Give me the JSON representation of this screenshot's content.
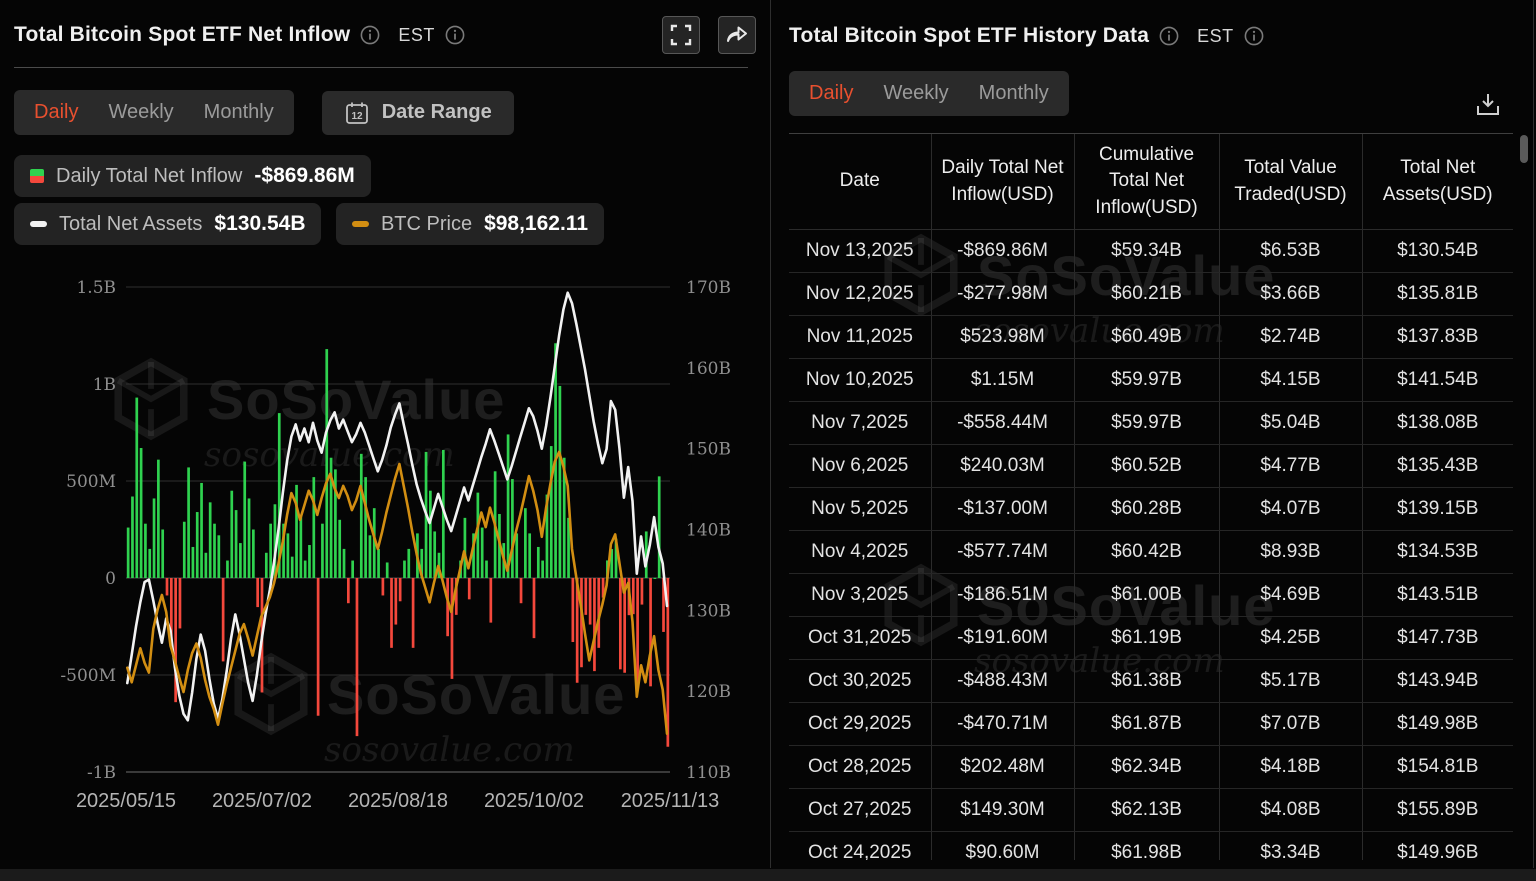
{
  "colors": {
    "accent_red": "#e8502f",
    "bar_green": "#2fd24f",
    "bar_red": "#f4483c",
    "table_green": "#1dbf5f",
    "table_red": "#f24040",
    "assets_line": "#f2f2f2",
    "btc_line": "#d28e12",
    "grid": "#303030",
    "grid_zero": "#4a4a4a",
    "grid_bottom": "#6e6e6e"
  },
  "watermark": {
    "brand": "SoSoValue",
    "domain": "sosovalue.com"
  },
  "left_panel": {
    "title": "Total Bitcoin Spot ETF Net Inflow",
    "timezone": "EST",
    "tabs": [
      "Daily",
      "Weekly",
      "Monthly"
    ],
    "active_tab": "Daily",
    "date_range_label": "Date Range",
    "calendar_day": "12",
    "legend": [
      {
        "label": "Daily Total Net Inflow",
        "value": "-$869.86M",
        "icon": "green-red-split-icon"
      },
      {
        "label": "Total Net Assets",
        "value": "$130.54B",
        "icon": "white-dash-icon"
      },
      {
        "label": "BTC Price",
        "value": "$98,162.11",
        "icon": "orange-dash-icon"
      }
    ]
  },
  "chart_data": {
    "type": "combo",
    "title": "Total Bitcoin Spot ETF Net Inflow",
    "x": {
      "tick_labels": [
        "2025/05/15",
        "2025/07/02",
        "2025/08/18",
        "2025/10/02",
        "2025/11/13"
      ],
      "start": "2025/05/15",
      "end": "2025/11/13",
      "points": 126
    },
    "axes": {
      "left": {
        "range_M": [
          -1000,
          1500
        ],
        "ticks": [
          1500,
          1000,
          500,
          0,
          -500,
          -1000
        ],
        "tick_labels": [
          "1.5B",
          "1B",
          "500M",
          "0",
          "-500M",
          "-1B"
        ]
      },
      "right": {
        "range_B": [
          110,
          170
        ],
        "ticks": [
          170,
          160,
          150,
          140,
          130,
          120,
          110
        ],
        "tick_labels": [
          "170B",
          "160B",
          "150B",
          "140B",
          "130B",
          "120B",
          "110B"
        ]
      },
      "btc_hidden": {
        "range_K": [
          95,
          135
        ]
      }
    },
    "series": [
      {
        "name": "Daily Total Net Inflow",
        "type": "bar",
        "axis": "left",
        "unit": "USD millions",
        "values": [
          260,
          420,
          930,
          670,
          280,
          150,
          410,
          610,
          250,
          -90,
          -350,
          -640,
          -260,
          290,
          570,
          160,
          340,
          490,
          130,
          390,
          280,
          220,
          -430,
          90,
          450,
          350,
          180,
          600,
          410,
          250,
          -150,
          -590,
          130,
          280,
          380,
          850,
          280,
          230,
          110,
          480,
          320,
          90,
          170,
          520,
          -710,
          280,
          1180,
          620,
          560,
          300,
          150,
          -130,
          90,
          -815,
          640,
          520,
          220,
          360,
          150,
          -90,
          80,
          -360,
          -240,
          -120,
          90,
          150,
          -360,
          230,
          150,
          650,
          450,
          240,
          130,
          660,
          -300,
          -520,
          -190,
          90,
          310,
          -110,
          230,
          440,
          260,
          90,
          -230,
          550,
          330,
          180,
          740,
          510,
          230,
          -130,
          360,
          230,
          -310,
          160,
          90,
          430,
          680,
          1210,
          990,
          620,
          310,
          -330,
          -540,
          -460,
          -190,
          -240,
          -480,
          -360,
          -101,
          90.6,
          149.3,
          202.48,
          -470.71,
          -488.43,
          -191.6,
          -186.51,
          -577.74,
          -137,
          240.03,
          -558.44,
          1.15,
          523.98,
          -277.98,
          -869.86
        ]
      },
      {
        "name": "Total Net Assets",
        "type": "line",
        "axis": "right",
        "unit": "USD billions",
        "values": [
          121,
          124.5,
          128,
          131,
          133.5,
          133.8,
          131.2,
          128.4,
          126,
          129,
          127.5,
          123,
          119.5,
          117.2,
          116.4,
          119.8,
          124,
          127,
          125,
          121.5,
          118.5,
          116.6,
          119,
          122.5,
          126.5,
          129.5,
          127,
          124,
          121,
          118.8,
          122,
          126,
          129.5,
          132.5,
          136,
          140,
          144.5,
          148.5,
          151.5,
          153,
          151,
          152.5,
          150.8,
          153.2,
          151,
          149.5,
          152,
          153.5,
          154.5,
          152.5,
          153.6,
          152.2,
          150.8,
          151.8,
          153.2,
          152,
          150.4,
          148.8,
          147.2,
          148.6,
          150.4,
          152.6,
          154.2,
          155.6,
          153,
          150.6,
          148,
          145.6,
          143.8,
          142.2,
          140.8,
          142.6,
          144.4,
          142.8,
          141.2,
          139.8,
          141.6,
          143.4,
          145.2,
          143.6,
          145.4,
          147.2,
          149,
          150.6,
          152.4,
          151,
          149.4,
          147.8,
          146.2,
          147.8,
          149.6,
          151.4,
          153.2,
          155,
          154,
          152.2,
          150,
          152.8,
          156.4,
          160.2,
          164,
          167.2,
          169.3,
          168,
          165.4,
          162.6,
          159.8,
          156.6,
          153.4,
          150.6,
          148.2,
          149.96,
          155.89,
          154.81,
          149.98,
          143.94,
          147.73,
          143.51,
          134.53,
          139.15,
          135.43,
          138.08,
          141.54,
          137.83,
          135.81,
          130.54
        ]
      },
      {
        "name": "BTC Price",
        "type": "line",
        "axis": "btc_hidden",
        "unit": "USD thousands",
        "values": [
          103.6,
          102.4,
          103.8,
          105.2,
          104,
          103.2,
          106.8,
          108.4,
          109.6,
          108.2,
          105.4,
          104.2,
          102.8,
          101.6,
          103.4,
          104.8,
          105.6,
          104.4,
          102.6,
          101.2,
          100.2,
          98.9,
          100.6,
          102.2,
          103.6,
          105,
          106.4,
          107.2,
          106,
          104.6,
          106.2,
          107.8,
          108.6,
          109.4,
          110.6,
          112.2,
          114,
          116.2,
          118,
          117.2,
          115.8,
          117,
          118.2,
          117.4,
          116.2,
          117.6,
          118.8,
          119.6,
          118.4,
          117.6,
          118.6,
          117.8,
          116.6,
          117.4,
          118.6,
          117.2,
          115.8,
          114.6,
          113.4,
          114.8,
          116.4,
          117.8,
          119.2,
          120.4,
          118.6,
          116.8,
          114.8,
          113,
          111.4,
          110.2,
          109,
          110.6,
          112,
          110.8,
          109.4,
          108.2,
          110,
          111.6,
          113.2,
          111.8,
          113.4,
          115,
          116.4,
          115.2,
          116.8,
          115.6,
          114.2,
          112.8,
          111.6,
          113.2,
          114.8,
          116.2,
          117.8,
          119.4,
          118.2,
          116.6,
          114.4,
          116.8,
          118.8,
          120.6,
          121.4,
          120.2,
          118.6,
          113.4,
          111,
          108.8,
          106.4,
          104.2,
          105.8,
          107.4,
          108.8,
          110.4,
          113.8,
          114.6,
          112.2,
          109.8,
          110.6,
          107.4,
          101.2,
          103.8,
          102.4,
          104.6,
          106.2,
          103.4,
          101.8,
          98.162
        ]
      }
    ],
    "current_values": {
      "daily_net_inflow": "-$869.86M",
      "total_net_assets": "$130.54B",
      "btc_price": "$98,162.11"
    }
  },
  "right_panel": {
    "title": "Total Bitcoin Spot ETF History Data",
    "timezone": "EST",
    "tabs": [
      "Daily",
      "Weekly",
      "Monthly"
    ],
    "active_tab": "Daily",
    "table": {
      "headers": [
        "Date",
        "Daily Total Net\nInflow(USD)",
        "Cumulative\nTotal Net\nInflow(USD)",
        "Total Value\nTraded(USD)",
        "Total Net\nAssets(USD)"
      ],
      "rows": [
        {
          "date": "Nov 13,2025",
          "inflow": "-$869.86M",
          "cumulative": "$59.34B",
          "traded": "$6.53B",
          "assets": "$130.54B"
        },
        {
          "date": "Nov 12,2025",
          "inflow": "-$277.98M",
          "cumulative": "$60.21B",
          "traded": "$3.66B",
          "assets": "$135.81B"
        },
        {
          "date": "Nov 11,2025",
          "inflow": "$523.98M",
          "cumulative": "$60.49B",
          "traded": "$2.74B",
          "assets": "$137.83B"
        },
        {
          "date": "Nov 10,2025",
          "inflow": "$1.15M",
          "cumulative": "$59.97B",
          "traded": "$4.15B",
          "assets": "$141.54B"
        },
        {
          "date": "Nov 7,2025",
          "inflow": "-$558.44M",
          "cumulative": "$59.97B",
          "traded": "$5.04B",
          "assets": "$138.08B"
        },
        {
          "date": "Nov 6,2025",
          "inflow": "$240.03M",
          "cumulative": "$60.52B",
          "traded": "$4.77B",
          "assets": "$135.43B"
        },
        {
          "date": "Nov 5,2025",
          "inflow": "-$137.00M",
          "cumulative": "$60.28B",
          "traded": "$4.07B",
          "assets": "$139.15B"
        },
        {
          "date": "Nov 4,2025",
          "inflow": "-$577.74M",
          "cumulative": "$60.42B",
          "traded": "$8.93B",
          "assets": "$134.53B"
        },
        {
          "date": "Nov 3,2025",
          "inflow": "-$186.51M",
          "cumulative": "$61.00B",
          "traded": "$4.69B",
          "assets": "$143.51B"
        },
        {
          "date": "Oct 31,2025",
          "inflow": "-$191.60M",
          "cumulative": "$61.19B",
          "traded": "$4.25B",
          "assets": "$147.73B"
        },
        {
          "date": "Oct 30,2025",
          "inflow": "-$488.43M",
          "cumulative": "$61.38B",
          "traded": "$5.17B",
          "assets": "$143.94B"
        },
        {
          "date": "Oct 29,2025",
          "inflow": "-$470.71M",
          "cumulative": "$61.87B",
          "traded": "$7.07B",
          "assets": "$149.98B"
        },
        {
          "date": "Oct 28,2025",
          "inflow": "$202.48M",
          "cumulative": "$62.34B",
          "traded": "$4.18B",
          "assets": "$154.81B"
        },
        {
          "date": "Oct 27,2025",
          "inflow": "$149.30M",
          "cumulative": "$62.13B",
          "traded": "$4.08B",
          "assets": "$155.89B"
        },
        {
          "date": "Oct 24,2025",
          "inflow": "$90.60M",
          "cumulative": "$61.98B",
          "traded": "$3.34B",
          "assets": "$149.96B"
        }
      ]
    }
  }
}
